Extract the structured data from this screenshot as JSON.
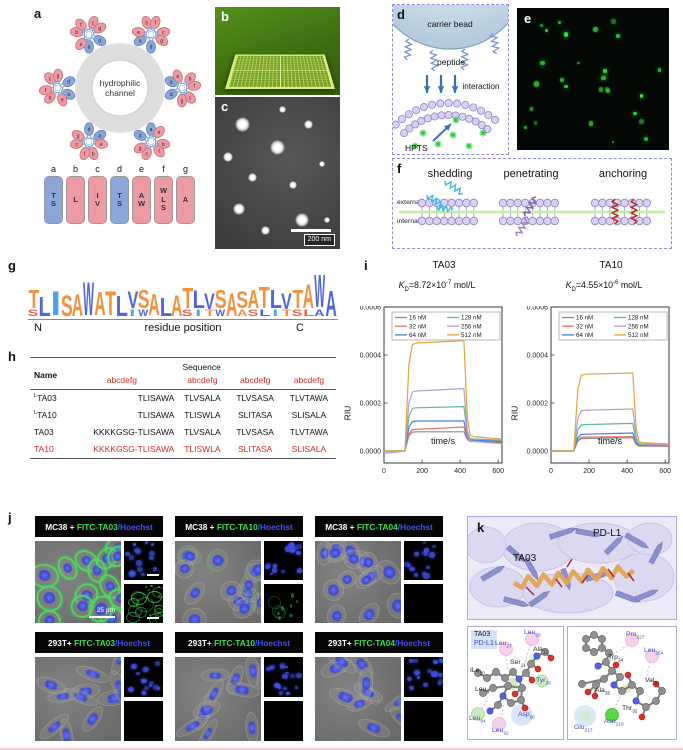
{
  "panels": {
    "a": {
      "label": "a",
      "channel_line1": "hydrophilic",
      "channel_line2": "channel",
      "wheel_letters": [
        "a",
        "b",
        "c",
        "d",
        "e",
        "f",
        "g"
      ],
      "legend": [
        {
          "letter": "a",
          "residues": [
            "T",
            "S"
          ],
          "type": "polar"
        },
        {
          "letter": "b",
          "residues": [
            "L"
          ],
          "type": "apolar"
        },
        {
          "letter": "c",
          "residues": [
            "I",
            "V"
          ],
          "type": "apolar"
        },
        {
          "letter": "d",
          "residues": [
            "T",
            "S"
          ],
          "type": "polar"
        },
        {
          "letter": "e",
          "residues": [
            "A",
            "W"
          ],
          "type": "apolar"
        },
        {
          "letter": "f",
          "residues": [
            "W",
            "L",
            "S"
          ],
          "type": "apolar"
        },
        {
          "letter": "g",
          "residues": [
            "A"
          ],
          "type": "apolar"
        }
      ],
      "colors": {
        "polar": "#8ba6d9",
        "apolar": "#ee9aa3"
      }
    },
    "b": {
      "label": "b"
    },
    "c": {
      "label": "c",
      "scale_bar": "200 nm"
    },
    "d": {
      "label": "d",
      "carrier_bead_label": "carrier bead",
      "peptide_label": "peptide",
      "interaction_label": "interaction",
      "hpts_label": "HPTS"
    },
    "e": {
      "label": "e"
    },
    "f": {
      "label": "f",
      "mode_labels": [
        "shedding",
        "penetrating",
        "anchoring"
      ],
      "external_label": "external",
      "internal_label": "internal"
    },
    "g": {
      "label": "g",
      "n_label": "N",
      "c_label": "C",
      "xlabel": "residue position",
      "logo": [
        {
          "m": "T",
          "c": "o",
          "h": 0.72,
          "s": "S",
          "sc": "r"
        },
        {
          "m": "L",
          "c": "b",
          "h": 0.78
        },
        {
          "m": "I",
          "c": "lb",
          "h": 0.95
        },
        {
          "m": "S",
          "c": "o",
          "h": 0.82
        },
        {
          "m": "A",
          "c": "o",
          "h": 0.88
        },
        {
          "m": "W",
          "c": "b",
          "h": 1.32
        },
        {
          "m": "A",
          "c": "o",
          "h": 0.92
        },
        {
          "m": "T",
          "c": "o",
          "h": 0.95
        },
        {
          "m": "L",
          "c": "b",
          "h": 0.8
        },
        {
          "m": "V",
          "c": "b",
          "h": 0.66,
          "s": "I",
          "sc": "lb"
        },
        {
          "m": "S",
          "c": "o",
          "h": 0.72,
          "s": "W",
          "sc": "b"
        },
        {
          "m": "A",
          "c": "o",
          "h": 0.85
        },
        {
          "m": "L",
          "c": "b",
          "h": 0.72
        },
        {
          "m": "A",
          "c": "o",
          "h": 0.82
        },
        {
          "m": "T",
          "c": "o",
          "h": 0.8,
          "s": "S",
          "sc": "r"
        },
        {
          "m": "L",
          "c": "b",
          "h": 0.7,
          "s": "I",
          "sc": "lb"
        },
        {
          "m": "V",
          "c": "b",
          "h": 0.62,
          "s": "T",
          "sc": "o"
        },
        {
          "m": "S",
          "c": "o",
          "h": 0.72,
          "s": "W",
          "sc": "b"
        },
        {
          "m": "A",
          "c": "o",
          "h": 0.9
        },
        {
          "m": "S",
          "c": "o",
          "h": 0.68,
          "s": "A",
          "sc": "o"
        },
        {
          "m": "A",
          "c": "o",
          "h": 0.72,
          "s": "S",
          "sc": "r"
        },
        {
          "m": "T",
          "c": "o",
          "h": 0.85,
          "s": "L",
          "sc": "b"
        },
        {
          "m": "L",
          "c": "b",
          "h": 0.72,
          "s": "I",
          "sc": "lb"
        },
        {
          "m": "V",
          "c": "b",
          "h": 0.62,
          "s": "T",
          "sc": "o"
        },
        {
          "m": "T",
          "c": "o",
          "h": 0.72,
          "s": "S",
          "sc": "r"
        },
        {
          "m": "A",
          "c": "o",
          "h": 0.95,
          "s": "L",
          "sc": "r"
        },
        {
          "m": "W",
          "c": "b",
          "h": 1.28,
          "s": "A",
          "sc": "b"
        },
        {
          "m": "A",
          "c": "b",
          "h": 1.0
        }
      ]
    },
    "h": {
      "label": "h",
      "header": {
        "name": "Name",
        "sequence": "Sequence",
        "heptad": "abcdefg"
      },
      "rows": [
        {
          "name_sup": "L",
          "name": "TA03",
          "red": false,
          "seq": [
            "TLISAWA",
            "TLVSALA",
            "TLVSASA",
            "TLVTAWA"
          ]
        },
        {
          "name_sup": "L",
          "name": "TA10",
          "red": false,
          "seq": [
            "TLISAWA",
            "TLISWLA",
            "SLITASA",
            "SLISALA"
          ]
        },
        {
          "name_sup": "",
          "name": "TA03",
          "red": false,
          "seq": [
            "KKKKGSG-TLISAWA",
            "TLVSALA",
            "TLVSASA",
            "TLVTAWA"
          ]
        },
        {
          "name_sup": "",
          "name": "TA10",
          "red": true,
          "seq": [
            "KKKKGSG-TLISAWA",
            "TLISWLA",
            "SLITASA",
            "SLISALA"
          ]
        }
      ]
    },
    "i": {
      "label": "i"
    },
    "j": {
      "label": "j",
      "colors": {
        "cell": "#ffffff",
        "fitc": "#3be04c",
        "hoechst": "#4553ee"
      },
      "groups": [
        {
          "cell": "MC38 + ",
          "probe": "FITC-TA03",
          "stain": "/Hoechst",
          "green": "strong",
          "scale_bar": "25 μm"
        },
        {
          "cell": "MC38 + ",
          "probe": "FITC-TA10",
          "stain": "/Hoechst",
          "green": "weak",
          "scale_bar": ""
        },
        {
          "cell": "MC38 + ",
          "probe": "FITC-TA04",
          "stain": "/Hoechst",
          "green": "none",
          "scale_bar": ""
        },
        {
          "cell": "293T+ ",
          "probe": "FITC-TA03",
          "stain": "/Hoechst",
          "green": "none",
          "scale_bar": ""
        },
        {
          "cell": "293T+ ",
          "probe": "FITC-TA10",
          "stain": "/Hoechst",
          "green": "none",
          "scale_bar": ""
        },
        {
          "cell": "293T+ ",
          "probe": "FITC-TA04",
          "stain": "/Hoechst",
          "green": "none",
          "scale_bar": ""
        }
      ]
    },
    "k": {
      "label": "k",
      "structure": {
        "peptide_label": "TA03",
        "protein_label": "PD-L1"
      },
      "legend": {
        "peptide": "TA03",
        "protein": "PD-L1"
      },
      "left_residues": [
        {
          "name": "Leu",
          "sub": "58",
          "color": "blue"
        },
        {
          "name": "Leu",
          "sub": "27",
          "color": "blue"
        },
        {
          "name": "Ala",
          "sub": "12",
          "color": "black"
        },
        {
          "name": "Ser",
          "sub": "11",
          "color": "black"
        },
        {
          "name": "ILe",
          "sub": "10",
          "color": "black"
        },
        {
          "name": "Tyr",
          "sub": "28",
          "color": "blue"
        },
        {
          "name": "Leu",
          "sub": "9",
          "color": "black"
        },
        {
          "name": "Asp",
          "sub": "90",
          "color": "blue"
        },
        {
          "name": "Leu",
          "sub": "94",
          "color": "blue"
        },
        {
          "name": "Leu",
          "sub": "92",
          "color": "blue"
        }
      ],
      "right_residues": [
        {
          "name": "Pro",
          "sub": "227",
          "color": "blue"
        },
        {
          "name": "Leu",
          "sub": "254",
          "color": "blue"
        },
        {
          "name": "Trp",
          "sub": "34",
          "color": "black"
        },
        {
          "name": "Val",
          "sub": "31",
          "color": "black"
        },
        {
          "name": "Ala",
          "sub": "35",
          "color": "black"
        },
        {
          "name": "Thr",
          "sub": "32",
          "color": "black"
        },
        {
          "name": "Asn",
          "sub": "219",
          "color": "blue"
        },
        {
          "name": "Glu",
          "sub": "217",
          "color": "blue"
        }
      ]
    }
  },
  "chart_data": [
    {
      "type": "line",
      "title": "TA03",
      "kd": {
        "symbol": "K",
        "sub": "D",
        "value": "=8.72×10",
        "exponent": "-7",
        "unit": " mol/L"
      },
      "xlabel": "time/s",
      "ylabel": "RIU",
      "xlim": [
        0,
        620
      ],
      "ylim": [
        -5e-05,
        0.0006
      ],
      "xticks": [
        0,
        200,
        400,
        600
      ],
      "yticks": [
        "0.0000",
        "0.0002",
        "0.0004",
        "0.0006"
      ],
      "legend_position": "top",
      "series": [
        {
          "name": "16 nM",
          "color": "#8c8c8c",
          "x": [
            0,
            110,
            170,
            420,
            470,
            620
          ],
          "y": [
            0,
            0,
            8e-05,
            8e-05,
            4e-05,
            3.5e-05
          ]
        },
        {
          "name": "32 nM",
          "color": "#e8736a",
          "x": [
            0,
            110,
            170,
            420,
            470,
            620
          ],
          "y": [
            0,
            0,
            9e-05,
            0.0001,
            4e-05,
            3.8e-05
          ]
        },
        {
          "name": "64 nM",
          "color": "#4a7de0",
          "x": [
            0,
            110,
            170,
            420,
            470,
            620
          ],
          "y": [
            0,
            0,
            0.000125,
            0.000125,
            4.5e-05,
            4e-05
          ]
        },
        {
          "name": "128 nM",
          "color": "#58c08a",
          "x": [
            0,
            110,
            170,
            420,
            470,
            620
          ],
          "y": [
            0,
            0,
            0.00018,
            0.000185,
            5e-05,
            4.5e-05
          ]
        },
        {
          "name": "256 nM",
          "color": "#b79ae0",
          "x": [
            0,
            110,
            170,
            420,
            470,
            620
          ],
          "y": [
            -1e-05,
            0,
            0.00025,
            0.00026,
            4e-05,
            3e-05
          ]
        },
        {
          "name": "512 nM",
          "color": "#dfa63a",
          "x": [
            0,
            110,
            170,
            420,
            470,
            620
          ],
          "y": [
            0,
            0,
            0.00045,
            0.00046,
            6e-05,
            5e-05
          ]
        }
      ]
    },
    {
      "type": "line",
      "title": "TA10",
      "kd": {
        "symbol": "K",
        "sub": "D",
        "value": "=4.55×10",
        "exponent": "-6",
        "unit": " mol/L"
      },
      "xlabel": "time/s",
      "ylabel": "RIU",
      "xlim": [
        0,
        620
      ],
      "ylim": [
        -5e-05,
        0.0006
      ],
      "xticks": [
        0,
        200,
        400,
        600
      ],
      "yticks": [
        "0.0000",
        "0.0002",
        "0.0004",
        "0.0006"
      ],
      "legend_position": "top",
      "series": [
        {
          "name": "16 nM",
          "color": "#8c8c8c",
          "x": [
            0,
            120,
            180,
            430,
            480,
            620
          ],
          "y": [
            0,
            0,
            5.2e-05,
            5.5e-05,
            2e-05,
            2e-05
          ]
        },
        {
          "name": "32 nM",
          "color": "#e8736a",
          "x": [
            0,
            120,
            180,
            430,
            480,
            620
          ],
          "y": [
            0,
            0,
            5.8e-05,
            6e-05,
            2.2e-05,
            2e-05
          ]
        },
        {
          "name": "64 nM",
          "color": "#4a7de0",
          "x": [
            0,
            120,
            180,
            430,
            480,
            620
          ],
          "y": [
            0,
            0,
            7e-05,
            7.5e-05,
            2.4e-05,
            2.2e-05
          ]
        },
        {
          "name": "128 nM",
          "color": "#58c08a",
          "x": [
            0,
            120,
            180,
            430,
            480,
            620
          ],
          "y": [
            0,
            0,
            0.00011,
            0.000115,
            2.6e-05,
            2.4e-05
          ]
        },
        {
          "name": "256 nM",
          "color": "#b79ae0",
          "x": [
            0,
            120,
            180,
            430,
            480,
            620
          ],
          "y": [
            0,
            0,
            0.00017,
            0.000175,
            3e-05,
            2.6e-05
          ]
        },
        {
          "name": "512 nM",
          "color": "#dfa63a",
          "x": [
            0,
            120,
            180,
            430,
            480,
            620
          ],
          "y": [
            0,
            0,
            0.00032,
            0.000325,
            3.5e-05,
            3e-05
          ]
        }
      ]
    }
  ]
}
